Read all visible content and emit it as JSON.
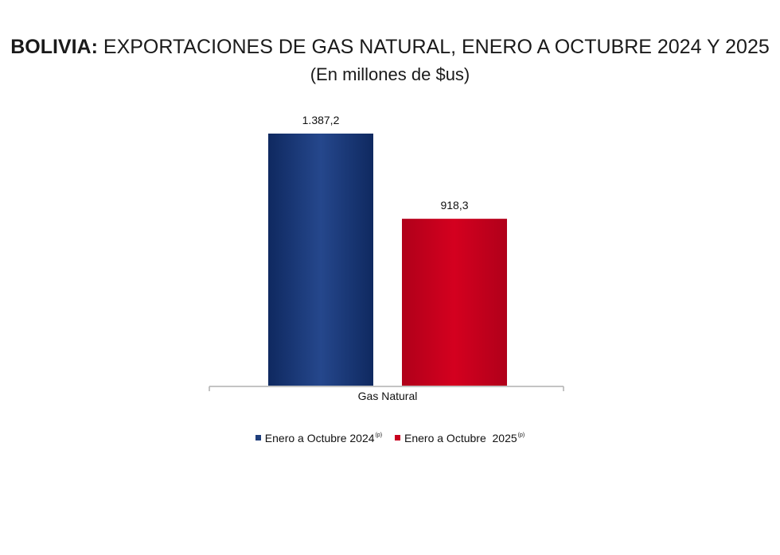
{
  "header": {
    "title_bold": "BOLIVIA:",
    "title_rest": "EXPORTACIONES DE GAS NATURAL, ENERO A OCTUBRE 2024 Y 2025",
    "subtitle": "(En millones de $us)"
  },
  "chart_data": {
    "type": "bar",
    "categories": [
      "Gas Natural"
    ],
    "series": [
      {
        "name": "Enero a Octubre 2024",
        "superscript": "(p)",
        "values": [
          1387.2
        ],
        "value_label": "1.387,2",
        "color": "#1f3e7c"
      },
      {
        "name": "Enero a Octubre  2025",
        "superscript": "(p)",
        "values": [
          918.3
        ],
        "value_label": "918,3",
        "color": "#c8001f"
      }
    ],
    "ylim": [
      0,
      1387.2
    ],
    "grid": false,
    "legend_position": "bottom"
  }
}
